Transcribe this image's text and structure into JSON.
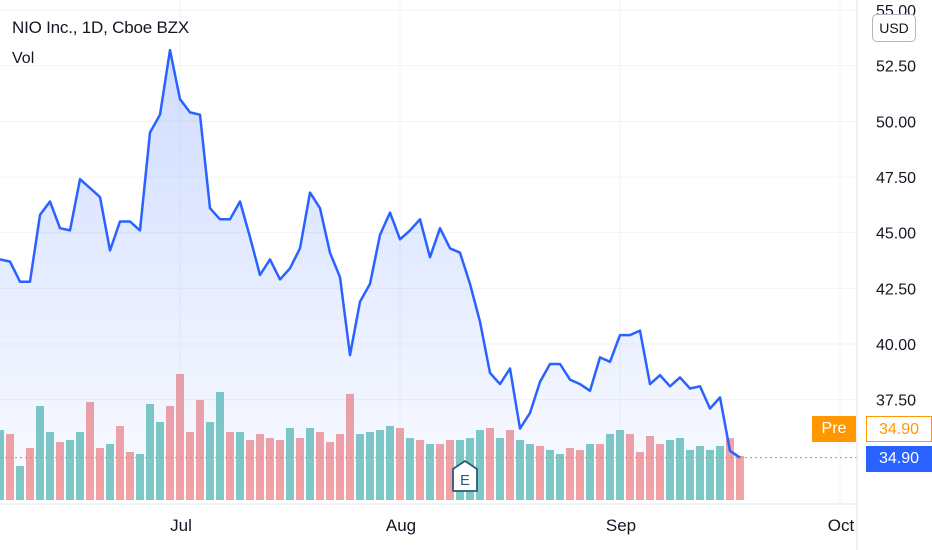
{
  "header": {
    "title": "NIO Inc., 1D, Cboe BZX",
    "indicator": "Vol"
  },
  "currency_badge": "USD",
  "price_tags": {
    "pre_label": "Pre",
    "pre_price": "34.90",
    "last_price": "34.90"
  },
  "earnings_marker": "E",
  "colors": {
    "line": "#2962ff",
    "area": "#2962ff",
    "vol_up": "#80cbc4",
    "vol_down": "#f5a3a3",
    "price_line": "#ff9800",
    "pre_tag": "#ff9800",
    "last_tag": "#2962ff"
  },
  "chart_data": {
    "type": "area",
    "title": "NIO Inc., 1D, Cboe BZX",
    "y_axis_ticks": [
      "37.50",
      "40.00",
      "42.50",
      "45.00",
      "47.50",
      "50.00",
      "52.50",
      "55.00"
    ],
    "x_axis_ticks": [
      "Jul",
      "Aug",
      "Sep",
      "Oct"
    ],
    "ylim": [
      33.2,
      55.2
    ],
    "last_price": 34.9,
    "price": [
      43.8,
      43.7,
      42.8,
      42.8,
      45.8,
      46.4,
      45.2,
      45.1,
      47.4,
      47.0,
      46.6,
      44.2,
      45.5,
      45.5,
      45.1,
      49.5,
      50.3,
      53.2,
      51.0,
      50.4,
      50.3,
      46.1,
      45.6,
      45.6,
      46.4,
      44.8,
      43.1,
      43.8,
      42.9,
      43.4,
      44.3,
      46.8,
      46.1,
      44.1,
      43.0,
      39.5,
      41.9,
      42.7,
      44.9,
      45.9,
      44.7,
      45.1,
      45.6,
      43.9,
      45.2,
      44.3,
      44.1,
      42.7,
      41.0,
      38.7,
      38.2,
      38.9,
      36.2,
      36.9,
      38.3,
      39.1,
      39.1,
      38.4,
      38.2,
      37.9,
      39.4,
      39.2,
      40.4,
      40.4,
      40.6,
      38.2,
      38.6,
      38.1,
      38.5,
      38.0,
      38.1,
      37.1,
      37.6,
      35.2,
      34.9
    ],
    "volume_direction": [
      "u",
      "d",
      "u",
      "d",
      "u",
      "u",
      "d",
      "u",
      "u",
      "d",
      "d",
      "u",
      "d",
      "d",
      "u",
      "u",
      "u",
      "d",
      "d",
      "d",
      "d",
      "u",
      "u",
      "d",
      "u",
      "d",
      "d",
      "d",
      "d",
      "u",
      "d",
      "u",
      "d",
      "d",
      "d",
      "d",
      "u",
      "u",
      "u",
      "u",
      "d",
      "u",
      "d",
      "u",
      "d",
      "d",
      "u",
      "u",
      "u",
      "d",
      "u",
      "d",
      "u",
      "u",
      "d",
      "u",
      "u",
      "d",
      "d",
      "u",
      "d",
      "u",
      "u",
      "d",
      "d",
      "d",
      "d",
      "u",
      "u",
      "u",
      "u",
      "u",
      "u",
      "d",
      "d"
    ],
    "volume_relative": [
      0.35,
      0.33,
      0.17,
      0.26,
      0.47,
      0.34,
      0.29,
      0.3,
      0.34,
      0.49,
      0.26,
      0.28,
      0.37,
      0.24,
      0.23,
      0.48,
      0.39,
      0.47,
      0.63,
      0.34,
      0.5,
      0.39,
      0.54,
      0.34,
      0.34,
      0.3,
      0.33,
      0.31,
      0.3,
      0.36,
      0.31,
      0.36,
      0.34,
      0.29,
      0.33,
      0.53,
      0.33,
      0.34,
      0.35,
      0.37,
      0.36,
      0.31,
      0.3,
      0.28,
      0.28,
      0.3,
      0.3,
      0.31,
      0.35,
      0.36,
      0.31,
      0.35,
      0.3,
      0.28,
      0.27,
      0.25,
      0.23,
      0.26,
      0.25,
      0.28,
      0.28,
      0.33,
      0.35,
      0.33,
      0.24,
      0.32,
      0.28,
      0.3,
      0.31,
      0.25,
      0.27,
      0.25,
      0.27,
      0.31,
      0.22
    ]
  }
}
